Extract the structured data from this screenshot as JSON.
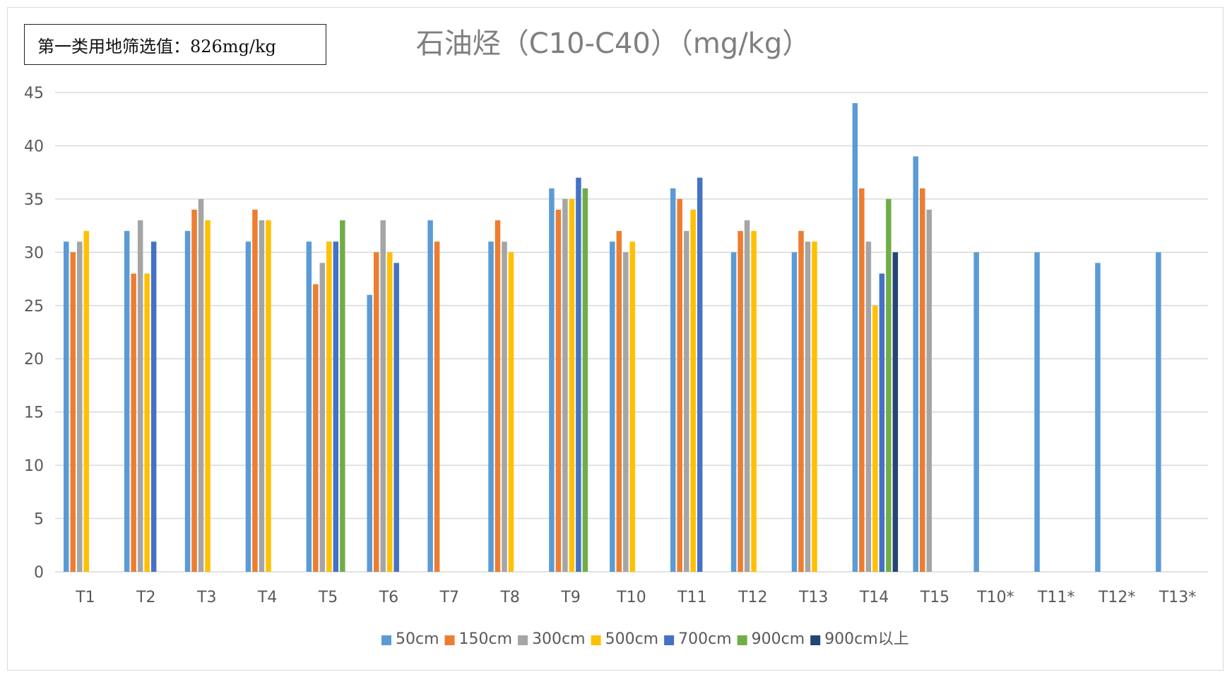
{
  "annotation": "第一类用地筛选值：826mg/kg",
  "chart_data": {
    "type": "bar",
    "title": "石油烃（C10-C40）（mg/kg）",
    "xlabel": "",
    "ylabel": "",
    "ylim": [
      0,
      45
    ],
    "yticks": [
      0,
      5,
      10,
      15,
      20,
      25,
      30,
      35,
      40,
      45
    ],
    "grid": true,
    "legend_position": "bottom",
    "categories": [
      "T1",
      "T2",
      "T3",
      "T4",
      "T5",
      "T6",
      "T7",
      "T8",
      "T9",
      "T10",
      "T11",
      "T12",
      "T13",
      "T14",
      "T15",
      "T10*",
      "T11*",
      "T12*",
      "T13*"
    ],
    "series": [
      {
        "name": "50cm",
        "color": "#5b9bd5",
        "values": [
          31,
          32,
          32,
          31,
          31,
          26,
          33,
          31,
          36,
          31,
          36,
          30,
          30,
          44,
          39,
          30,
          30,
          29,
          30
        ]
      },
      {
        "name": "150cm",
        "color": "#ed7d31",
        "values": [
          30,
          28,
          34,
          34,
          27,
          30,
          31,
          33,
          34,
          32,
          35,
          32,
          32,
          36,
          36,
          null,
          null,
          null,
          null
        ]
      },
      {
        "name": "300cm",
        "color": "#a5a5a5",
        "values": [
          31,
          33,
          35,
          33,
          29,
          33,
          null,
          31,
          35,
          30,
          32,
          33,
          31,
          31,
          34,
          null,
          null,
          null,
          null
        ]
      },
      {
        "name": "500cm",
        "color": "#ffc000",
        "values": [
          32,
          28,
          33,
          33,
          31,
          30,
          null,
          30,
          35,
          31,
          34,
          32,
          31,
          25,
          null,
          null,
          null,
          null,
          null
        ]
      },
      {
        "name": "700cm",
        "color": "#4472c4",
        "values": [
          null,
          31,
          null,
          null,
          31,
          29,
          null,
          null,
          37,
          null,
          37,
          null,
          null,
          28,
          null,
          null,
          null,
          null,
          null
        ]
      },
      {
        "name": "900cm",
        "color": "#70ad47",
        "values": [
          null,
          null,
          null,
          null,
          33,
          null,
          null,
          null,
          36,
          null,
          null,
          null,
          null,
          35,
          null,
          null,
          null,
          null,
          null
        ]
      },
      {
        "name": "900cm以上",
        "color": "#264478",
        "values": [
          null,
          null,
          null,
          null,
          null,
          null,
          null,
          null,
          null,
          null,
          null,
          null,
          null,
          30,
          null,
          null,
          null,
          null,
          null
        ]
      }
    ]
  }
}
